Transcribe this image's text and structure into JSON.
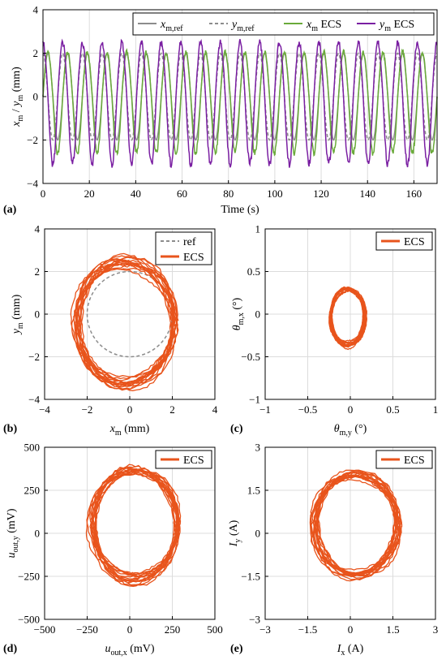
{
  "colors": {
    "ref_solid": "#8c8c8c",
    "ref_dashed": "#8c8c8c",
    "x_ecs": "#6aaa3a",
    "y_ecs": "#7a1fa2",
    "ecs": "#e8541c"
  },
  "chart_data": [
    {
      "id": "a",
      "type": "line",
      "panel_label": "(a)",
      "xlabel": "Time (s)",
      "ylabel": "x_m / y_m (mm)",
      "xlim": [
        0,
        170
      ],
      "ylim": [
        -4,
        4
      ],
      "xticks": [
        0,
        20,
        40,
        60,
        80,
        100,
        120,
        140,
        160
      ],
      "yticks": [
        -4,
        -2,
        0,
        2,
        4
      ],
      "grid": true,
      "legend_position": "top",
      "signal": {
        "period_s": 8.5,
        "samples_per_period": 40
      },
      "series": [
        {
          "name": "x_m,ref",
          "style": "solid",
          "amplitude": 2.0,
          "phase_deg": 0
        },
        {
          "name": "y_m,ref",
          "style": "dashed",
          "amplitude": 2.0,
          "phase_deg": 90
        },
        {
          "name": "x_m ECS",
          "style": "solid",
          "amplitude_pos": 2.05,
          "amplitude_neg": 2.6,
          "phase_deg": 0
        },
        {
          "name": "y_m ECS",
          "style": "solid",
          "amplitude_pos": 2.5,
          "amplitude_neg": 3.1,
          "phase_deg": 90
        }
      ]
    },
    {
      "id": "b",
      "type": "line",
      "panel_label": "(b)",
      "xlabel": "x_m (mm)",
      "ylabel": "y_m (mm)",
      "xlim": [
        -4,
        4
      ],
      "ylim": [
        -4,
        4
      ],
      "xticks": [
        -4,
        -2,
        0,
        2,
        4
      ],
      "yticks": [
        -4,
        -2,
        0,
        2,
        4
      ],
      "grid": true,
      "legend_position": "top-right",
      "series": [
        {
          "name": "ref",
          "style": "dashed",
          "shape": "circle",
          "center": [
            0,
            0
          ],
          "radius": 2.0
        },
        {
          "name": "ECS",
          "style": "solid",
          "center": [
            -0.2,
            -0.4
          ],
          "rx": 2.3,
          "ry": 2.8,
          "loops": 16
        }
      ]
    },
    {
      "id": "c",
      "type": "line",
      "panel_label": "(c)",
      "xlabel": "θ_m,y (°)",
      "ylabel": "θ_m,x (°)",
      "xlim": [
        -1,
        1
      ],
      "ylim": [
        -1,
        1
      ],
      "xticks": [
        -1,
        -0.5,
        0,
        0.5,
        1
      ],
      "yticks": [
        -1,
        -0.5,
        0,
        0.5,
        1
      ],
      "grid": true,
      "legend_position": "top-right",
      "series": [
        {
          "name": "ECS",
          "style": "solid",
          "center": [
            -0.03,
            -0.03
          ],
          "rx": 0.2,
          "ry": 0.33,
          "loops": 16
        }
      ]
    },
    {
      "id": "d",
      "type": "line",
      "panel_label": "(d)",
      "xlabel": "u_out,x (mV)",
      "ylabel": "u_out,y (mV)",
      "xlim": [
        -500,
        500
      ],
      "ylim": [
        -500,
        500
      ],
      "xticks": [
        -500,
        -250,
        0,
        250,
        500
      ],
      "yticks": [
        -500,
        -250,
        0,
        250,
        500
      ],
      "grid": true,
      "legend_position": "top-right",
      "series": [
        {
          "name": "ECS",
          "style": "solid",
          "center": [
            30,
            50
          ],
          "rx": 255,
          "ry": 320,
          "loops": 16
        }
      ]
    },
    {
      "id": "e",
      "type": "line",
      "panel_label": "(e)",
      "xlabel": "I_x (A)",
      "ylabel": "I_y (A)",
      "xlim": [
        -3,
        3
      ],
      "ylim": [
        -3,
        3
      ],
      "xticks": [
        -3,
        -1.5,
        0,
        1.5,
        3
      ],
      "yticks": [
        -3,
        -1.5,
        0,
        1.5,
        3
      ],
      "grid": true,
      "legend_position": "top-right",
      "series": [
        {
          "name": "ECS",
          "style": "solid",
          "center": [
            0.2,
            0.3
          ],
          "rx": 1.45,
          "ry": 1.7,
          "loops": 16
        }
      ]
    }
  ]
}
